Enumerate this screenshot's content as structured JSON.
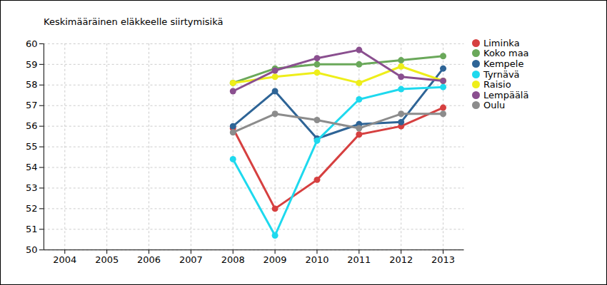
{
  "chart_data": {
    "type": "line",
    "title": "Keskimääräinen eläkkeelle siirtymisikä",
    "x": [
      2008,
      2009,
      2010,
      2011,
      2012,
      2013
    ],
    "xlim": [
      2003.5,
      2013.5
    ],
    "xticks": [
      2004,
      2005,
      2006,
      2007,
      2008,
      2009,
      2010,
      2011,
      2012,
      2013
    ],
    "ylim": [
      50,
      60
    ],
    "yticks": [
      50,
      51,
      52,
      53,
      54,
      55,
      56,
      57,
      58,
      59,
      60
    ],
    "grid": true,
    "legend": "right",
    "marker": "circle",
    "series": [
      {
        "name": "Liminka",
        "color": "#d64040",
        "values": [
          55.9,
          52.0,
          53.4,
          55.6,
          56.0,
          56.9
        ]
      },
      {
        "name": "Koko maa",
        "color": "#6aa85a",
        "values": [
          58.1,
          58.8,
          59.0,
          59.0,
          59.2,
          59.4
        ]
      },
      {
        "name": "Kempele",
        "color": "#2e6496",
        "values": [
          56.0,
          57.7,
          55.4,
          56.1,
          56.2,
          58.8
        ]
      },
      {
        "name": "Tyrnävä",
        "color": "#1ed9ee",
        "values": [
          54.4,
          50.7,
          55.3,
          57.3,
          57.8,
          57.9
        ]
      },
      {
        "name": "Raisio",
        "color": "#eeee1a",
        "values": [
          58.1,
          58.4,
          58.6,
          58.1,
          58.9,
          58.2
        ]
      },
      {
        "name": "Lempäälä",
        "color": "#8a4f8f",
        "values": [
          57.7,
          58.7,
          59.3,
          59.7,
          58.4,
          58.2
        ]
      },
      {
        "name": "Oulu",
        "color": "#8c8c8c",
        "values": [
          55.7,
          56.6,
          56.3,
          55.9,
          56.6,
          56.6
        ]
      }
    ]
  }
}
